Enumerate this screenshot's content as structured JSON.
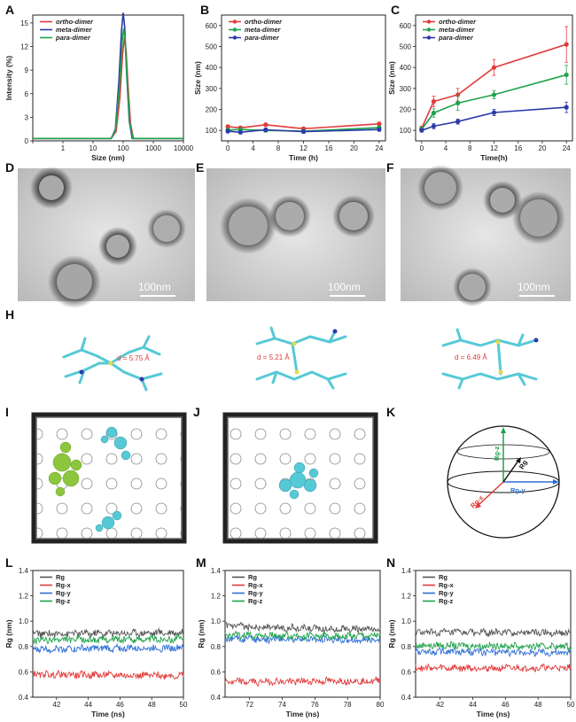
{
  "colors": {
    "red": "#e23b3b",
    "green": "#1ea34a",
    "blue": "#2b3aa8",
    "cyan": "#56c9d6",
    "lime": "#8cc63f",
    "gray": "#555555",
    "rgy": "#2f6fd6"
  },
  "panel_labels": {
    "A": "A",
    "B": "B",
    "C": "C",
    "D": "D",
    "E": "E",
    "F": "F",
    "H": "H",
    "I": "I",
    "J": "J",
    "K": "K",
    "L": "L",
    "M": "M",
    "N": "N"
  },
  "micrographs": {
    "scale_bar": "100nm"
  },
  "structures": {
    "d1": "d = 5.75 Å",
    "d2": "d = 5.21 Å",
    "d3": "d = 6.49 Å"
  },
  "sphere": {
    "labels": [
      "Rg",
      "Rg-x",
      "Rg-y",
      "Rg-z"
    ]
  },
  "chart_data": [
    {
      "panel": "A",
      "type": "line",
      "xlabel": "Size (nm)",
      "ylabel": "Intensity (%)",
      "xscale": "log",
      "xlim": [
        0.1,
        10000
      ],
      "ylim": [
        0,
        16
      ],
      "xticks": [
        0.1,
        1,
        10,
        100,
        1000,
        10000
      ],
      "xtick_labels": [
        "",
        "1",
        "10",
        "100",
        "1000",
        "10000"
      ],
      "yticks": [
        0,
        3,
        6,
        9,
        12,
        15
      ],
      "legend": "top-left",
      "series": [
        {
          "name": "ortho-dimer",
          "color": "#e23b3b",
          "x": [
            0.1,
            40,
            58,
            78,
            95,
            110,
            125,
            145,
            175,
            220,
            10000
          ],
          "y": [
            0.3,
            0.3,
            1.2,
            5.5,
            10.8,
            13.2,
            11.5,
            7.0,
            2.2,
            0.3,
            0.3
          ]
        },
        {
          "name": "meta-dimer",
          "color": "#2b3aa8",
          "x": [
            0.1,
            40,
            55,
            72,
            88,
            100,
            112,
            130,
            160,
            200,
            10000
          ],
          "y": [
            0.3,
            0.3,
            1.5,
            7.5,
            14.0,
            16.3,
            14.5,
            8.5,
            2.5,
            0.3,
            0.3
          ]
        },
        {
          "name": "para-dimer",
          "color": "#1ea34a",
          "x": [
            0.1,
            40,
            56,
            75,
            92,
            104,
            117,
            135,
            165,
            210,
            10000
          ],
          "y": [
            0.3,
            0.3,
            1.4,
            6.8,
            12.6,
            14.3,
            12.8,
            7.8,
            2.4,
            0.3,
            0.3
          ]
        }
      ]
    },
    {
      "panel": "B",
      "type": "line",
      "xlabel": "Time (h)",
      "ylabel": "Size (nm)",
      "xlim": [
        -1,
        25
      ],
      "ylim": [
        50,
        650
      ],
      "xticks": [
        0,
        4,
        8,
        12,
        16,
        20,
        24
      ],
      "yticks": [
        100,
        200,
        300,
        400,
        500,
        600
      ],
      "legend": "top-left",
      "series": [
        {
          "name": "ortho-dimer",
          "color": "#e23b3b",
          "x": [
            0,
            2,
            6,
            12,
            24
          ],
          "y": [
            118,
            112,
            127,
            108,
            131
          ],
          "err": [
            8,
            8,
            8,
            8,
            8
          ]
        },
        {
          "name": "meta-dimer",
          "color": "#1ea34a",
          "x": [
            0,
            2,
            6,
            12,
            24
          ],
          "y": [
            102,
            104,
            100,
            96,
            113
          ],
          "err": [
            8,
            8,
            8,
            8,
            8
          ]
        },
        {
          "name": "para-dimer",
          "color": "#2b3aa8",
          "x": [
            0,
            2,
            6,
            12,
            24
          ],
          "y": [
            96,
            91,
            103,
            94,
            104
          ],
          "err": [
            8,
            8,
            8,
            8,
            8
          ]
        }
      ]
    },
    {
      "panel": "C",
      "type": "line",
      "xlabel": "Time(h)",
      "ylabel": "Size (nm)",
      "xlim": [
        -1,
        25
      ],
      "ylim": [
        50,
        650
      ],
      "xticks": [
        0,
        4,
        8,
        12,
        16,
        20,
        24
      ],
      "yticks": [
        100,
        200,
        300,
        400,
        500,
        600
      ],
      "legend": "top-left",
      "series": [
        {
          "name": "ortho-dimer",
          "color": "#e23b3b",
          "x": [
            0,
            2,
            6,
            12,
            24
          ],
          "y": [
            110,
            238,
            270,
            400,
            510
          ],
          "err": [
            10,
            25,
            30,
            38,
            85
          ]
        },
        {
          "name": "meta-dimer",
          "color": "#1ea34a",
          "x": [
            0,
            2,
            6,
            12,
            24
          ],
          "y": [
            105,
            183,
            230,
            270,
            365
          ],
          "err": [
            10,
            20,
            35,
            20,
            45
          ]
        },
        {
          "name": "para-dimer",
          "color": "#2b3aa8",
          "x": [
            0,
            2,
            6,
            12,
            24
          ],
          "y": [
            100,
            120,
            142,
            185,
            210
          ],
          "err": [
            8,
            12,
            12,
            15,
            25
          ]
        }
      ]
    },
    {
      "panel": "L",
      "type": "line",
      "xlabel": "Time (ns)",
      "ylabel": "Rg (nm)",
      "xlim": [
        40.5,
        50
      ],
      "ylim": [
        0.4,
        1.4
      ],
      "xticks": [
        42,
        44,
        46,
        48,
        50
      ],
      "yticks": [
        0.4,
        0.6,
        0.8,
        1.0,
        1.2,
        1.4
      ],
      "legend": "top-left",
      "series": [
        {
          "name": "Rg",
          "color": "#555555",
          "x": [
            40.5,
            50
          ],
          "y": [
            0.9,
            0.91
          ]
        },
        {
          "name": "Rg-x",
          "color": "#e23b3b",
          "x": [
            40.5,
            50
          ],
          "y": [
            0.58,
            0.57
          ]
        },
        {
          "name": "Rg-y",
          "color": "#2f6fd6",
          "x": [
            40.5,
            50
          ],
          "y": [
            0.78,
            0.79
          ]
        },
        {
          "name": "Rg-z",
          "color": "#1ea34a",
          "x": [
            40.5,
            50
          ],
          "y": [
            0.85,
            0.86
          ]
        }
      ]
    },
    {
      "panel": "M",
      "type": "line",
      "xlabel": "Time (ns)",
      "ylabel": "Rg (nm)",
      "xlim": [
        70.5,
        80
      ],
      "ylim": [
        0.4,
        1.4
      ],
      "xticks": [
        72,
        74,
        76,
        78,
        80
      ],
      "yticks": [
        0.4,
        0.6,
        0.8,
        1.0,
        1.2,
        1.4
      ],
      "legend": "top-left",
      "series": [
        {
          "name": "Rg",
          "color": "#555555",
          "x": [
            70.5,
            80
          ],
          "y": [
            0.96,
            0.93
          ]
        },
        {
          "name": "Rg-x",
          "color": "#e23b3b",
          "x": [
            70.5,
            80
          ],
          "y": [
            0.52,
            0.53
          ]
        },
        {
          "name": "Rg-y",
          "color": "#2f6fd6",
          "x": [
            70.5,
            80
          ],
          "y": [
            0.86,
            0.85
          ]
        },
        {
          "name": "Rg-z",
          "color": "#1ea34a",
          "x": [
            70.5,
            80
          ],
          "y": [
            0.89,
            0.88
          ]
        }
      ]
    },
    {
      "panel": "N",
      "type": "line",
      "xlabel": "Time (ns)",
      "ylabel": "Rg (nm)",
      "xlim": [
        40.5,
        50
      ],
      "ylim": [
        0.4,
        1.4
      ],
      "xticks": [
        42,
        44,
        46,
        48,
        50
      ],
      "yticks": [
        0.4,
        0.6,
        0.8,
        1.0,
        1.2,
        1.4
      ],
      "legend": "top-left",
      "series": [
        {
          "name": "Rg",
          "color": "#555555",
          "x": [
            40.5,
            50
          ],
          "y": [
            0.91,
            0.91
          ]
        },
        {
          "name": "Rg-x",
          "color": "#e23b3b",
          "x": [
            40.5,
            50
          ],
          "y": [
            0.63,
            0.63
          ]
        },
        {
          "name": "Rg-y",
          "color": "#2f6fd6",
          "x": [
            40.5,
            50
          ],
          "y": [
            0.76,
            0.75
          ]
        },
        {
          "name": "Rg-z",
          "color": "#1ea34a",
          "x": [
            40.5,
            50
          ],
          "y": [
            0.81,
            0.8
          ]
        }
      ]
    }
  ]
}
